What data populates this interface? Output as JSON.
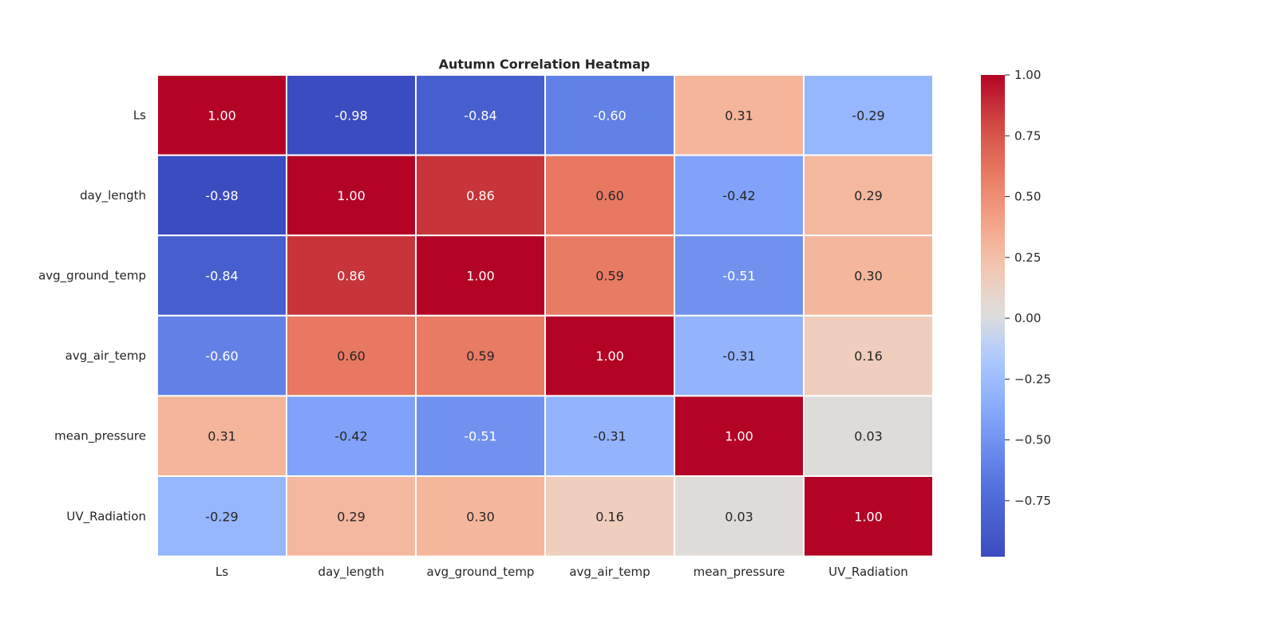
{
  "chart_data": {
    "type": "heatmap",
    "title": "Autumn Correlation Heatmap",
    "x_categories": [
      "Ls",
      "day_length",
      "avg_ground_temp",
      "avg_air_temp",
      "mean_pressure",
      "UV_Radiation"
    ],
    "y_categories": [
      "Ls",
      "day_length",
      "avg_ground_temp",
      "avg_air_temp",
      "mean_pressure",
      "UV_Radiation"
    ],
    "values": [
      [
        1.0,
        -0.98,
        -0.84,
        -0.6,
        0.31,
        -0.29
      ],
      [
        -0.98,
        1.0,
        0.86,
        0.6,
        -0.42,
        0.29
      ],
      [
        -0.84,
        0.86,
        1.0,
        0.59,
        -0.51,
        0.3
      ],
      [
        -0.6,
        0.6,
        0.59,
        1.0,
        -0.31,
        0.16
      ],
      [
        0.31,
        -0.42,
        -0.51,
        -0.31,
        1.0,
        0.03
      ],
      [
        -0.29,
        0.29,
        0.3,
        0.16,
        0.03,
        1.0
      ]
    ],
    "value_format": "0.00",
    "colormap": "coolwarm",
    "vmin": -0.98,
    "vmax": 1.0,
    "colorbar": {
      "ticks": [
        1.0,
        0.75,
        0.5,
        0.25,
        0.0,
        -0.25,
        -0.5,
        -0.75
      ],
      "tick_labels": [
        "1.00",
        "0.75",
        "0.50",
        "0.25",
        "0.00",
        "−0.25",
        "−0.50",
        "−0.75"
      ]
    },
    "colors": {
      "low": "#3b4cc0",
      "mid": "#dddddd",
      "high": "#b40426",
      "grid_lines": "#ffffff",
      "text_dark": "#262626",
      "text_light": "#ffffff"
    }
  }
}
